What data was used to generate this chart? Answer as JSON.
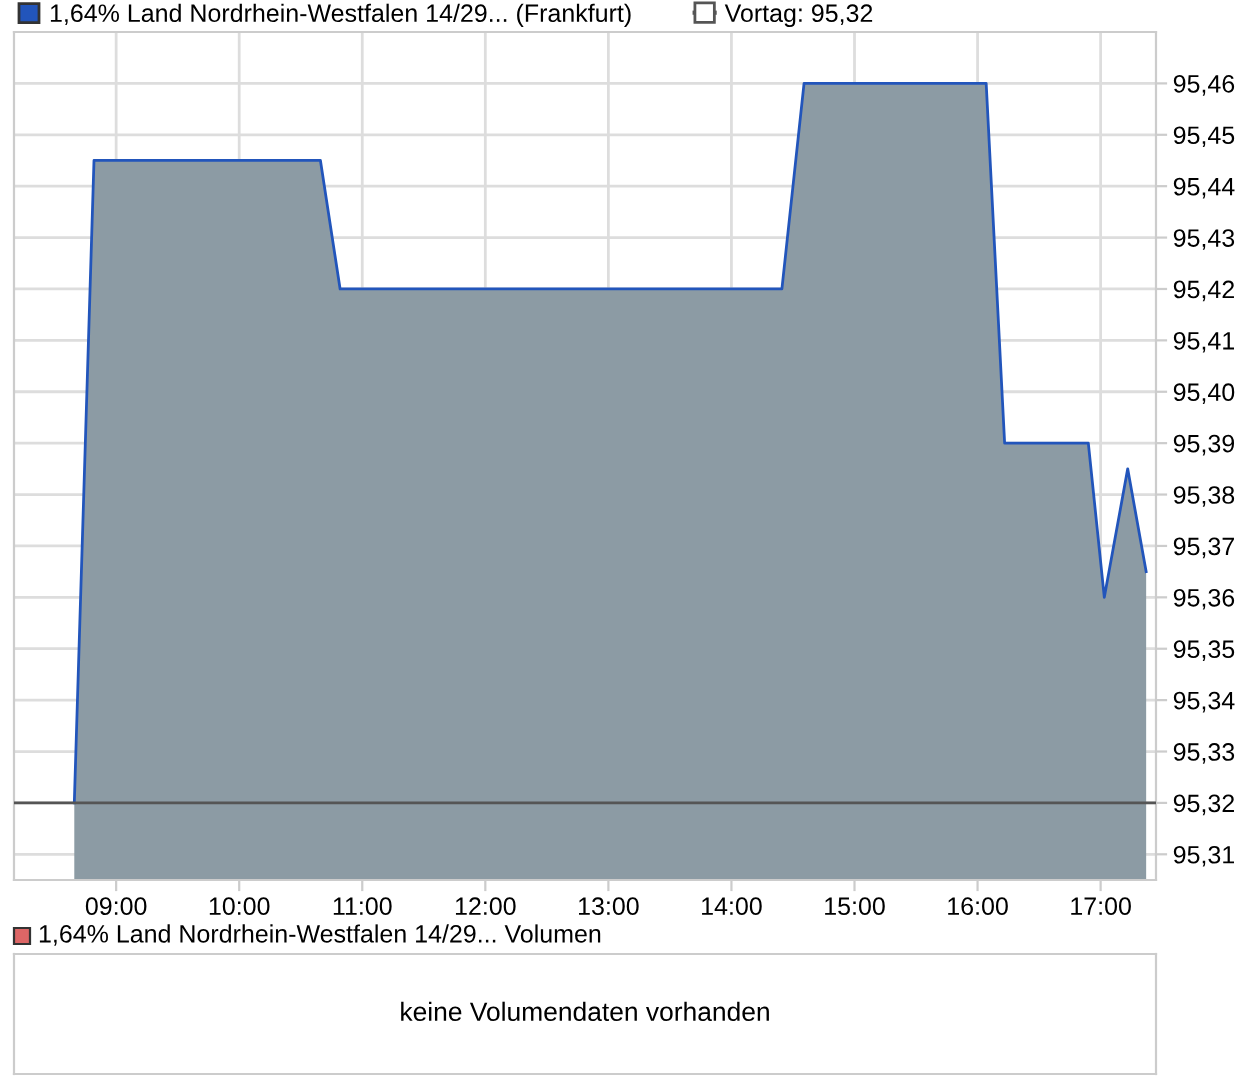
{
  "chart_data": [
    {
      "type": "area",
      "series": [
        {
          "name": "1,64% Land Nordrhein-Westfalen 14/29... (Frankfurt)",
          "color": "#2255bb",
          "x": [
            8.66,
            8.82,
            10.66,
            10.82,
            14.41,
            14.59,
            16.07,
            16.22,
            16.9,
            17.03,
            17.22,
            17.37
          ],
          "values": [
            95.32,
            95.445,
            95.445,
            95.42,
            95.42,
            95.46,
            95.46,
            95.39,
            95.39,
            95.36,
            95.385,
            95.365
          ]
        }
      ],
      "xlim": [
        8.17,
        17.45
      ],
      "ylim": [
        95.305,
        95.47
      ],
      "xticks": [
        {
          "value": 9,
          "label": "09:00"
        },
        {
          "value": 10,
          "label": "10:00"
        },
        {
          "value": 11,
          "label": "11:00"
        },
        {
          "value": 12,
          "label": "12:00"
        },
        {
          "value": 13,
          "label": "13:00"
        },
        {
          "value": 14,
          "label": "14:00"
        },
        {
          "value": 15,
          "label": "15:00"
        },
        {
          "value": 16,
          "label": "16:00"
        },
        {
          "value": 17,
          "label": "17:00"
        }
      ],
      "yticks": [
        {
          "value": 95.31,
          "label": "95,31"
        },
        {
          "value": 95.32,
          "label": "95,32"
        },
        {
          "value": 95.33,
          "label": "95,33"
        },
        {
          "value": 95.34,
          "label": "95,34"
        },
        {
          "value": 95.35,
          "label": "95,35"
        },
        {
          "value": 95.36,
          "label": "95,36"
        },
        {
          "value": 95.37,
          "label": "95,37"
        },
        {
          "value": 95.38,
          "label": "95,38"
        },
        {
          "value": 95.39,
          "label": "95,39"
        },
        {
          "value": 95.4,
          "label": "95,40"
        },
        {
          "value": 95.41,
          "label": "95,41"
        },
        {
          "value": 95.42,
          "label": "95,42"
        },
        {
          "value": 95.43,
          "label": "95,43"
        },
        {
          "value": 95.44,
          "label": "95,44"
        },
        {
          "value": 95.45,
          "label": "95,45"
        },
        {
          "value": 95.46,
          "label": "95,46"
        }
      ],
      "ref_lines": [
        {
          "axis": "y",
          "value": 95.32,
          "label": "Vortag: 95,32",
          "color": "#555555"
        }
      ],
      "grid": true,
      "legend": "top"
    },
    {
      "type": "other",
      "title": "1,64% Land Nordrhein-Westfalen 14/29... Volumen",
      "annotations": [
        "keine Volumendaten vorhanden"
      ]
    }
  ]
}
